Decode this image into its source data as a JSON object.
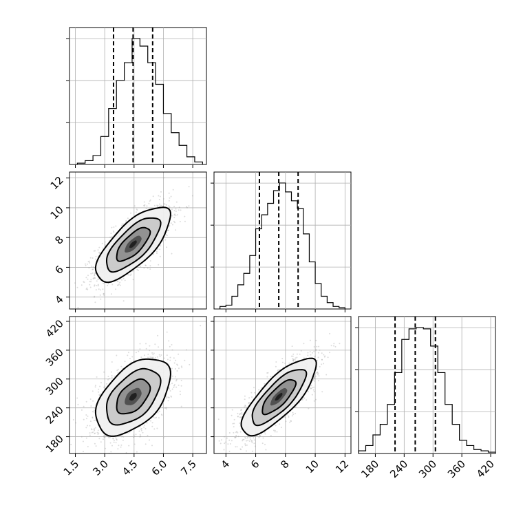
{
  "chart_data": {
    "type": "corner",
    "title": "",
    "grid": true,
    "hist_style": "step",
    "vertical_lines": "dashed",
    "params": [
      {
        "xlim": [
          1.2,
          8.2
        ],
        "ticks": [
          1.5,
          3.0,
          4.5,
          6.0,
          7.5
        ],
        "tick_labels": [
          "1.5",
          "3.0",
          "4.5",
          "6.0",
          "7.5"
        ],
        "quantiles": [
          3.45,
          4.45,
          5.45
        ],
        "hist": {
          "edges": [
            1.6,
            2.0,
            2.4,
            2.8,
            3.2,
            3.6,
            4.0,
            4.4,
            4.8,
            5.2,
            5.6,
            6.0,
            6.4,
            6.8,
            7.2,
            7.6,
            8.0
          ],
          "counts": [
            0.01,
            0.03,
            0.07,
            0.22,
            0.44,
            0.66,
            0.8,
            0.99,
            0.93,
            0.8,
            0.63,
            0.4,
            0.25,
            0.15,
            0.06,
            0.02
          ]
        }
      },
      {
        "xlim": [
          3.2,
          12.4
        ],
        "ticks": [
          4,
          6,
          8,
          10,
          12
        ],
        "tick_labels": [
          "4",
          "6",
          "8",
          "10",
          "12"
        ],
        "quantiles": [
          6.25,
          7.55,
          8.85
        ],
        "hist": {
          "edges": [
            3.6,
            4.0,
            4.4,
            4.8,
            5.2,
            5.6,
            6.0,
            6.4,
            6.8,
            7.2,
            7.6,
            8.0,
            8.4,
            8.8,
            9.2,
            9.6,
            10.0,
            10.4,
            10.8,
            11.2,
            11.6,
            12.0
          ],
          "counts": [
            0.02,
            0.03,
            0.1,
            0.19,
            0.28,
            0.42,
            0.63,
            0.74,
            0.83,
            0.93,
            0.99,
            0.92,
            0.85,
            0.79,
            0.59,
            0.37,
            0.2,
            0.1,
            0.05,
            0.02,
            0.01
          ]
        }
      },
      {
        "xlim": [
          145,
          430
        ],
        "ticks": [
          180,
          240,
          300,
          360,
          420
        ],
        "tick_labels": [
          "180",
          "240",
          "300",
          "360",
          "420"
        ],
        "quantiles": [
          221,
          263,
          305
        ],
        "hist": {
          "edges": [
            145,
            160,
            175,
            190,
            205,
            220,
            235,
            250,
            265,
            280,
            295,
            310,
            325,
            340,
            355,
            370,
            385,
            400,
            415,
            430
          ],
          "counts": [
            0.02,
            0.06,
            0.14,
            0.22,
            0.37,
            0.61,
            0.86,
            0.94,
            0.95,
            0.94,
            0.81,
            0.61,
            0.37,
            0.22,
            0.1,
            0.06,
            0.03,
            0.02,
            0.01
          ]
        }
      }
    ],
    "pairs": [
      {
        "x_param": 0,
        "y_param": 1,
        "mean": [
          4.45,
          7.55
        ],
        "std": [
          0.95,
          1.25
        ],
        "corr": 0.72
      },
      {
        "x_param": 0,
        "y_param": 2,
        "mean": [
          4.45,
          263
        ],
        "std": [
          0.95,
          40
        ],
        "corr": 0.5
      },
      {
        "x_param": 1,
        "y_param": 2,
        "mean": [
          7.55,
          263
        ],
        "std": [
          1.25,
          40
        ],
        "corr": 0.78
      }
    ]
  }
}
